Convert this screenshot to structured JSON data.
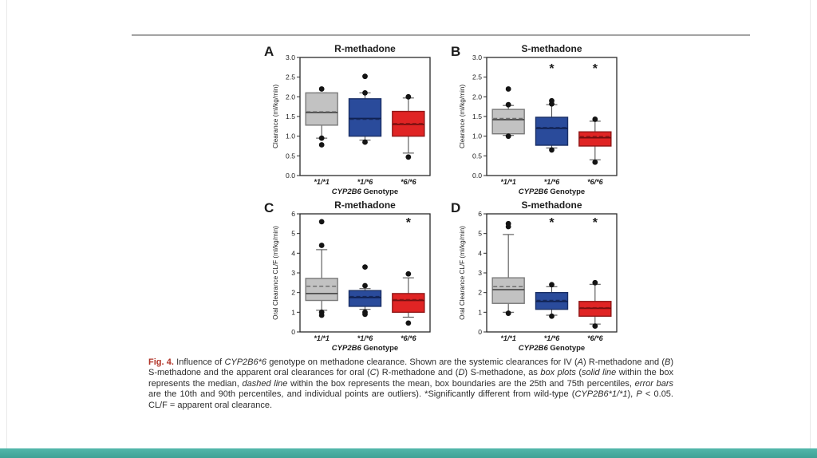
{
  "page": {
    "background": "#ffffff",
    "divider_color": "#a3a3a3",
    "footer_bar_color_top": "#52b7ab",
    "footer_bar_color_bottom": "#3fa195"
  },
  "figure": {
    "caption_segments": [
      {
        "text": "Fig. 4.",
        "style": "figlabel"
      },
      {
        "text": " Influence of ",
        "style": "plain"
      },
      {
        "text": "CYP2B6*6",
        "style": "italic"
      },
      {
        "text": " genotype on methadone clearance. Shown are the systemic clearances for IV (",
        "style": "plain"
      },
      {
        "text": "A",
        "style": "italic"
      },
      {
        "text": ") R-methadone and (",
        "style": "plain"
      },
      {
        "text": "B",
        "style": "italic"
      },
      {
        "text": ") S-methadone and the apparent oral clearances for oral (",
        "style": "plain"
      },
      {
        "text": "C",
        "style": "italic"
      },
      {
        "text": ") R-methadone and (",
        "style": "plain"
      },
      {
        "text": "D",
        "style": "italic"
      },
      {
        "text": ") S-methadone, as ",
        "style": "plain"
      },
      {
        "text": "box plots",
        "style": "italic"
      },
      {
        "text": " (",
        "style": "plain"
      },
      {
        "text": "solid line",
        "style": "italic"
      },
      {
        "text": " within the box represents the median, ",
        "style": "plain"
      },
      {
        "text": "dashed line",
        "style": "italic"
      },
      {
        "text": " within the box represents the mean, box boundaries are the 25th and 75th percentiles, ",
        "style": "plain"
      },
      {
        "text": "error bars",
        "style": "italic"
      },
      {
        "text": " are the 10th and 90th percentiles, and individual points are outliers). *Significantly different from wild-type (",
        "style": "plain"
      },
      {
        "text": "CYP2B6*1/*1",
        "style": "italic"
      },
      {
        "text": "), ",
        "style": "plain"
      },
      {
        "text": "P",
        "style": "italic"
      },
      {
        "text": " < 0.05. CL/F = apparent oral clearance.",
        "style": "plain"
      }
    ]
  },
  "chart_data": [
    {
      "type": "box",
      "panel_letter": "A",
      "title": "R-methadone",
      "ylabel": "Clearance (ml/kg/min)",
      "ylim": [
        0,
        3
      ],
      "yticks": [
        {
          "v": 0,
          "label": "0.0"
        },
        {
          "v": 0.5,
          "label": "0.5"
        },
        {
          "v": 1,
          "label": "1.0"
        },
        {
          "v": 1.5,
          "label": "1.5"
        },
        {
          "v": 2,
          "label": "2.0"
        },
        {
          "v": 2.5,
          "label": "2.5"
        },
        {
          "v": 3,
          "label": "3.0"
        }
      ],
      "xlabel_italic": "CYP2B6",
      "xlabel_rest": " Genotype",
      "sig_y": 2.72,
      "boxes": [
        {
          "category": "*1/*1",
          "fill": "#c2c2c2",
          "stroke": "#7a7a7a",
          "median_color": "#4d4d4d",
          "mean_color": "#6e6e6e",
          "q1": 1.28,
          "q3": 2.1,
          "median": 1.6,
          "mean": 1.62,
          "whisker_low": 0.95,
          "whisker_high": 2.1,
          "outliers": [
            2.2,
            0.95,
            0.78
          ],
          "significant": false
        },
        {
          "category": "*1/*6",
          "fill": "#2a4b9b",
          "stroke": "#1a2f66",
          "median_color": "#0f2050",
          "mean_color": "#16295c",
          "q1": 1.0,
          "q3": 1.95,
          "median": 1.45,
          "mean": 1.43,
          "whisker_low": 0.9,
          "whisker_high": 2.1,
          "outliers": [
            2.52,
            2.1,
            0.85
          ],
          "significant": false
        },
        {
          "category": "*6/*6",
          "fill": "#e02424",
          "stroke": "#8f1717",
          "median_color": "#6f0f0f",
          "mean_color": "#8a1212",
          "q1": 1.0,
          "q3": 1.63,
          "median": 1.3,
          "mean": 1.32,
          "whisker_low": 0.57,
          "whisker_high": 1.97,
          "outliers": [
            2.0,
            0.47
          ],
          "significant": false
        }
      ]
    },
    {
      "type": "box",
      "panel_letter": "B",
      "title": "S-methadone",
      "ylabel": "Clearance (ml/kg/min)",
      "ylim": [
        0,
        3
      ],
      "yticks": [
        {
          "v": 0,
          "label": "0.0"
        },
        {
          "v": 0.5,
          "label": "0.5"
        },
        {
          "v": 1,
          "label": "1.0"
        },
        {
          "v": 1.5,
          "label": "1.5"
        },
        {
          "v": 2,
          "label": "2.0"
        },
        {
          "v": 2.5,
          "label": "2.5"
        },
        {
          "v": 3,
          "label": "3.0"
        }
      ],
      "xlabel_italic": "CYP2B6",
      "xlabel_rest": " Genotype",
      "sig_y": 2.72,
      "boxes": [
        {
          "category": "*1/*1",
          "fill": "#c2c2c2",
          "stroke": "#7a7a7a",
          "median_color": "#4d4d4d",
          "mean_color": "#6e6e6e",
          "q1": 1.06,
          "q3": 1.68,
          "median": 1.42,
          "mean": 1.45,
          "whisker_low": 1.02,
          "whisker_high": 1.78,
          "outliers": [
            2.2,
            1.8,
            1.0
          ],
          "significant": false
        },
        {
          "category": "*1/*6",
          "fill": "#2a4b9b",
          "stroke": "#1a2f66",
          "median_color": "#0f2050",
          "mean_color": "#16295c",
          "q1": 0.77,
          "q3": 1.48,
          "median": 1.2,
          "mean": 1.22,
          "whisker_low": 0.7,
          "whisker_high": 1.8,
          "outliers": [
            1.9,
            1.82,
            0.65
          ],
          "significant": true
        },
        {
          "category": "*6/*6",
          "fill": "#e02424",
          "stroke": "#8f1717",
          "median_color": "#6f0f0f",
          "mean_color": "#8a1212",
          "q1": 0.75,
          "q3": 1.11,
          "median": 0.96,
          "mean": 0.99,
          "whisker_low": 0.4,
          "whisker_high": 1.38,
          "outliers": [
            1.43,
            0.34
          ],
          "significant": true
        }
      ]
    },
    {
      "type": "box",
      "panel_letter": "C",
      "title": "R-methadone",
      "ylabel": "Oral Clearance CL/F (ml/kg/min)",
      "ylim": [
        0,
        6
      ],
      "yticks": [
        {
          "v": 0,
          "label": "0"
        },
        {
          "v": 1,
          "label": "1"
        },
        {
          "v": 2,
          "label": "2"
        },
        {
          "v": 3,
          "label": "3"
        },
        {
          "v": 4,
          "label": "4"
        },
        {
          "v": 5,
          "label": "5"
        },
        {
          "v": 6,
          "label": "6"
        }
      ],
      "xlabel_italic": "CYP2B6",
      "xlabel_rest": " Genotype",
      "sig_y": 5.55,
      "boxes": [
        {
          "category": "*1/*1",
          "fill": "#c2c2c2",
          "stroke": "#7a7a7a",
          "median_color": "#4d4d4d",
          "mean_color": "#6e6e6e",
          "q1": 1.6,
          "q3": 2.72,
          "median": 1.95,
          "mean": 2.32,
          "whisker_low": 1.1,
          "whisker_high": 4.18,
          "outliers": [
            5.6,
            4.4,
            1.0,
            0.85
          ],
          "significant": false
        },
        {
          "category": "*1/*6",
          "fill": "#2a4b9b",
          "stroke": "#1a2f66",
          "median_color": "#0f2050",
          "mean_color": "#16295c",
          "q1": 1.3,
          "q3": 2.1,
          "median": 1.75,
          "mean": 1.8,
          "whisker_low": 1.15,
          "whisker_high": 2.2,
          "outliers": [
            3.3,
            2.35,
            1.0,
            0.9
          ],
          "significant": false
        },
        {
          "category": "*6/*6",
          "fill": "#e02424",
          "stroke": "#8f1717",
          "median_color": "#6f0f0f",
          "mean_color": "#8a1212",
          "q1": 1.0,
          "q3": 1.95,
          "median": 1.6,
          "mean": 1.64,
          "whisker_low": 0.75,
          "whisker_high": 2.75,
          "outliers": [
            2.95,
            0.45
          ],
          "significant": true
        }
      ]
    },
    {
      "type": "box",
      "panel_letter": "D",
      "title": "S-methadone",
      "ylabel": "Oral Clearance CL/F (ml/kg/min)",
      "ylim": [
        0,
        6
      ],
      "yticks": [
        {
          "v": 0,
          "label": "0"
        },
        {
          "v": 1,
          "label": "1"
        },
        {
          "v": 2,
          "label": "2"
        },
        {
          "v": 3,
          "label": "3"
        },
        {
          "v": 4,
          "label": "4"
        },
        {
          "v": 5,
          "label": "5"
        },
        {
          "v": 6,
          "label": "6"
        }
      ],
      "xlabel_italic": "CYP2B6",
      "xlabel_rest": " Genotype",
      "sig_y": 5.55,
      "boxes": [
        {
          "category": "*1/*1",
          "fill": "#c2c2c2",
          "stroke": "#7a7a7a",
          "median_color": "#4d4d4d",
          "mean_color": "#6e6e6e",
          "q1": 1.45,
          "q3": 2.75,
          "median": 2.15,
          "mean": 2.3,
          "whisker_low": 1.0,
          "whisker_high": 4.95,
          "outliers": [
            5.5,
            5.35,
            0.95
          ],
          "significant": false
        },
        {
          "category": "*1/*6",
          "fill": "#2a4b9b",
          "stroke": "#1a2f66",
          "median_color": "#0f2050",
          "mean_color": "#16295c",
          "q1": 1.15,
          "q3": 2.0,
          "median": 1.55,
          "mean": 1.6,
          "whisker_low": 0.85,
          "whisker_high": 2.3,
          "outliers": [
            2.4,
            0.8
          ],
          "significant": true
        },
        {
          "category": "*6/*6",
          "fill": "#e02424",
          "stroke": "#8f1717",
          "median_color": "#6f0f0f",
          "mean_color": "#8a1212",
          "q1": 0.8,
          "q3": 1.55,
          "median": 1.2,
          "mean": 1.23,
          "whisker_low": 0.4,
          "whisker_high": 2.42,
          "outliers": [
            2.5,
            0.3
          ],
          "significant": true
        }
      ]
    }
  ]
}
